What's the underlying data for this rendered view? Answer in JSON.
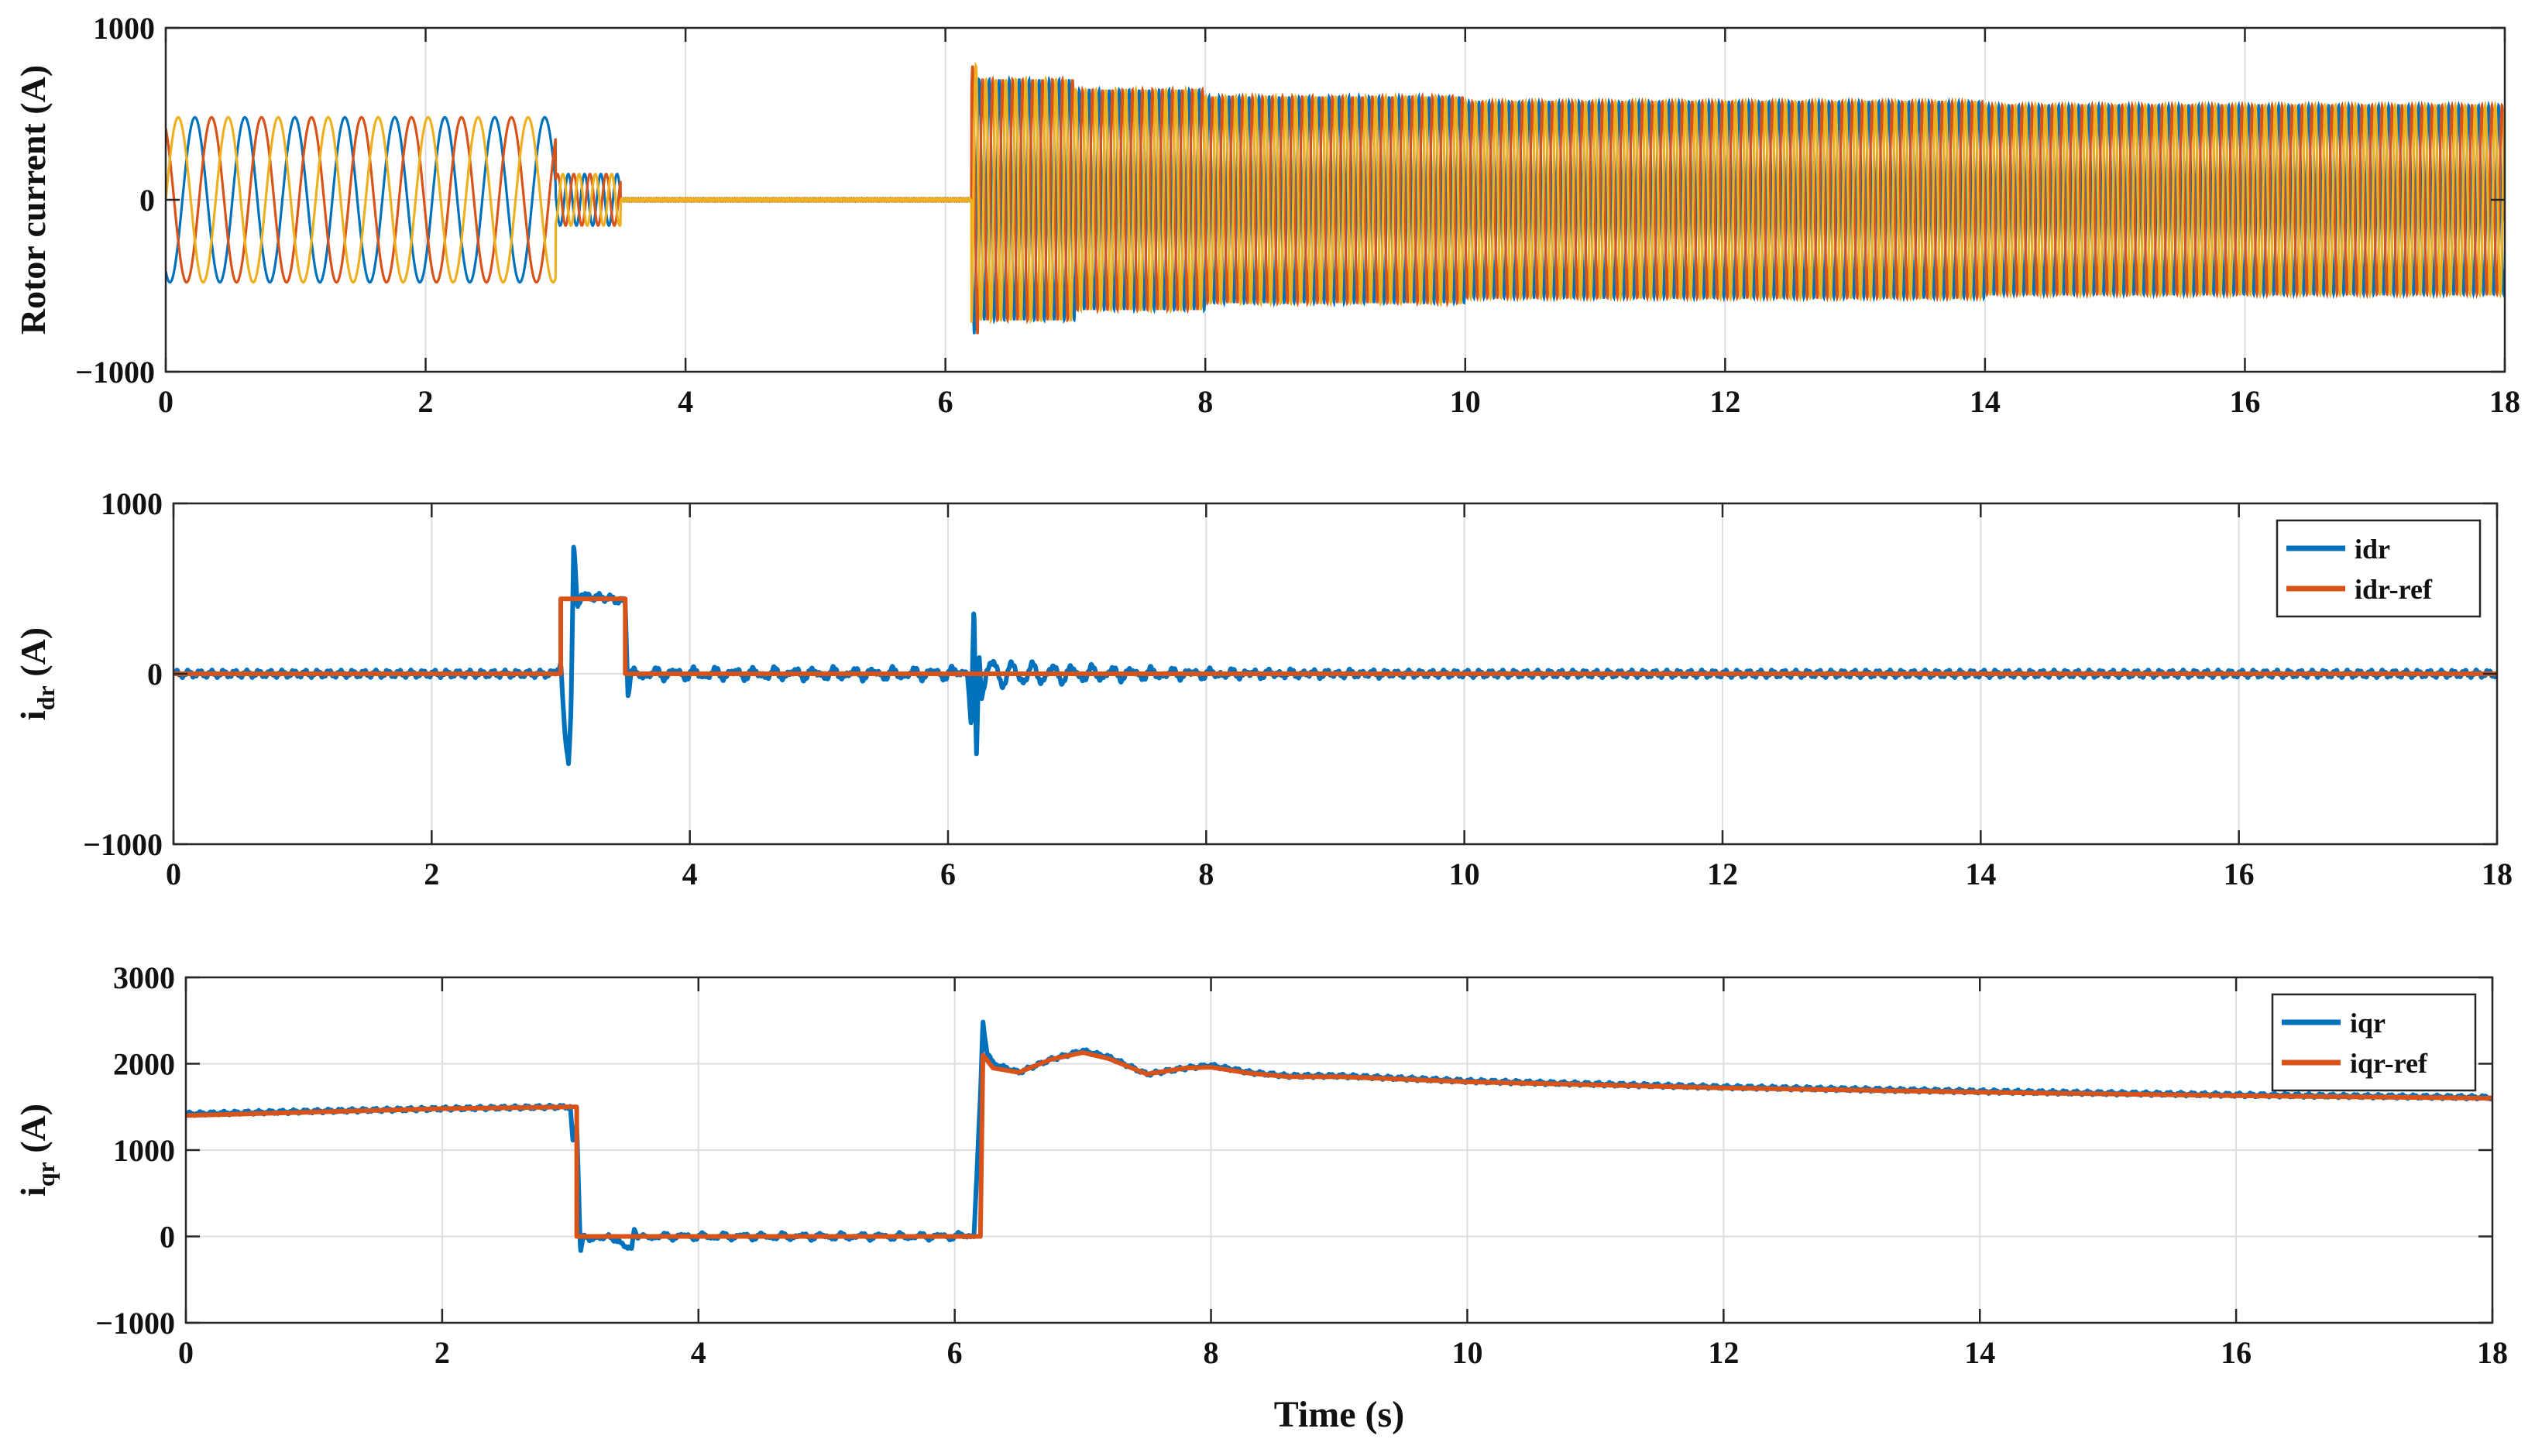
{
  "colors": {
    "blue": "#0072BD",
    "orange": "#D95319",
    "yellow": "#EDB120",
    "grid": "#dedede",
    "axis": "#262626"
  },
  "x_ticks": [
    "0",
    "2",
    "4",
    "6",
    "8",
    "10",
    "12",
    "14",
    "16",
    "18"
  ],
  "chart_data": [
    {
      "type": "line",
      "id": "rotor-current",
      "ylabel": "Rotor current (A)",
      "xlabel": "",
      "xlim": [
        0,
        18
      ],
      "ylim": [
        -1000,
        1000
      ],
      "y_ticks": [
        "−1000",
        "0",
        "1000"
      ],
      "grid": true,
      "legend": "none",
      "series": [
        {
          "color_key": "blue",
          "phase_deg": -120
        },
        {
          "color_key": "orange",
          "phase_deg": 120
        },
        {
          "color_key": "yellow",
          "phase_deg": 0
        }
      ],
      "segments": [
        {
          "t": [
            0,
            3.0
          ],
          "amplitude": 480,
          "frequency_hz": 2.6
        },
        {
          "t": [
            3.0,
            3.5
          ],
          "amplitude": 150,
          "frequency_hz": 8
        },
        {
          "t": [
            3.5,
            6.2
          ],
          "amplitude": 8,
          "frequency_hz": 50
        },
        {
          "t": [
            6.2,
            6.25
          ],
          "amplitude": 780,
          "frequency_hz": 13
        },
        {
          "t": [
            6.25,
            7.0
          ],
          "amplitude": 700,
          "frequency_hz": 13
        },
        {
          "t": [
            7.0,
            8.0
          ],
          "amplitude": 640,
          "frequency_hz": 13
        },
        {
          "t": [
            8.0,
            10.0
          ],
          "amplitude": 600,
          "frequency_hz": 13
        },
        {
          "t": [
            10.0,
            14.0
          ],
          "amplitude": 570,
          "frequency_hz": 13
        },
        {
          "t": [
            14.0,
            18.0
          ],
          "amplitude": 550,
          "frequency_hz": 13
        }
      ]
    },
    {
      "type": "line",
      "id": "idr",
      "ylabel": "i",
      "ylabel_sub": "dr",
      "ylabel_unit": " (A)",
      "xlabel": "",
      "xlim": [
        0,
        18
      ],
      "ylim": [
        -1000,
        1000
      ],
      "y_ticks": [
        "−1000",
        "0",
        "1000"
      ],
      "grid": true,
      "legend": "top-right",
      "series": [
        {
          "name": "idr",
          "color_key": "blue",
          "x": [
            0,
            2.95,
            3.0,
            3.03,
            3.06,
            3.08,
            3.1,
            3.13,
            3.16,
            3.2,
            3.3,
            3.4,
            3.5,
            3.52,
            3.55,
            3.6,
            4,
            5,
            6,
            6.15,
            6.18,
            6.2,
            6.22,
            6.24,
            6.26,
            6.3,
            6.4,
            6.6,
            7.0,
            8.0,
            10,
            18
          ],
          "y": [
            0,
            0,
            60,
            -350,
            -520,
            -200,
            760,
            380,
            470,
            450,
            450,
            440,
            420,
            -120,
            20,
            0,
            0,
            0,
            0,
            20,
            -300,
            370,
            -540,
            160,
            -60,
            20,
            0,
            0,
            0,
            0,
            0,
            0
          ]
        },
        {
          "name": "idr-ref",
          "color_key": "orange",
          "x": [
            0,
            3.0,
            3.0,
            3.5,
            3.5,
            18
          ],
          "y": [
            0,
            0,
            440,
            440,
            0,
            0
          ]
        }
      ]
    },
    {
      "type": "line",
      "id": "iqr",
      "ylabel": "i",
      "ylabel_sub": "qr",
      "ylabel_unit": " (A)",
      "xlabel": "Time (s)",
      "xlim": [
        0,
        18
      ],
      "ylim": [
        -1000,
        3000
      ],
      "y_ticks": [
        "−1000",
        "0",
        "1000",
        "2000",
        "3000"
      ],
      "grid": true,
      "legend": "top-right",
      "series": [
        {
          "name": "iqr",
          "color_key": "blue",
          "x": [
            0,
            1,
            2,
            2.9,
            3.0,
            3.02,
            3.05,
            3.08,
            3.1,
            3.15,
            3.3,
            3.48,
            3.5,
            3.52,
            3.6,
            6.0,
            6.15,
            6.2,
            6.22,
            6.25,
            6.3,
            6.5,
            6.75,
            7.0,
            7.2,
            7.5,
            7.8,
            8.0,
            8.3,
            8.6,
            9.0,
            10,
            12,
            14,
            16,
            18
          ],
          "y": [
            1420,
            1450,
            1480,
            1500,
            1500,
            1100,
            1300,
            -180,
            0,
            -30,
            0,
            -150,
            100,
            0,
            0,
            0,
            20,
            1600,
            2480,
            2150,
            2000,
            1900,
            2050,
            2150,
            2080,
            1880,
            1950,
            1980,
            1900,
            1860,
            1860,
            1800,
            1730,
            1680,
            1640,
            1610
          ]
        },
        {
          "name": "iqr-ref",
          "color_key": "orange",
          "x": [
            0,
            1,
            2,
            3.0,
            3.05,
            3.05,
            6.2,
            6.22,
            6.3,
            6.5,
            6.75,
            7.0,
            7.2,
            7.5,
            7.8,
            8.0,
            8.3,
            8.6,
            9.0,
            10,
            12,
            14,
            16,
            18
          ],
          "y": [
            1400,
            1440,
            1480,
            1500,
            1500,
            0,
            0,
            2100,
            1950,
            1900,
            2050,
            2130,
            2060,
            1880,
            1950,
            1960,
            1890,
            1850,
            1850,
            1790,
            1720,
            1670,
            1630,
            1600
          ]
        }
      ]
    }
  ]
}
